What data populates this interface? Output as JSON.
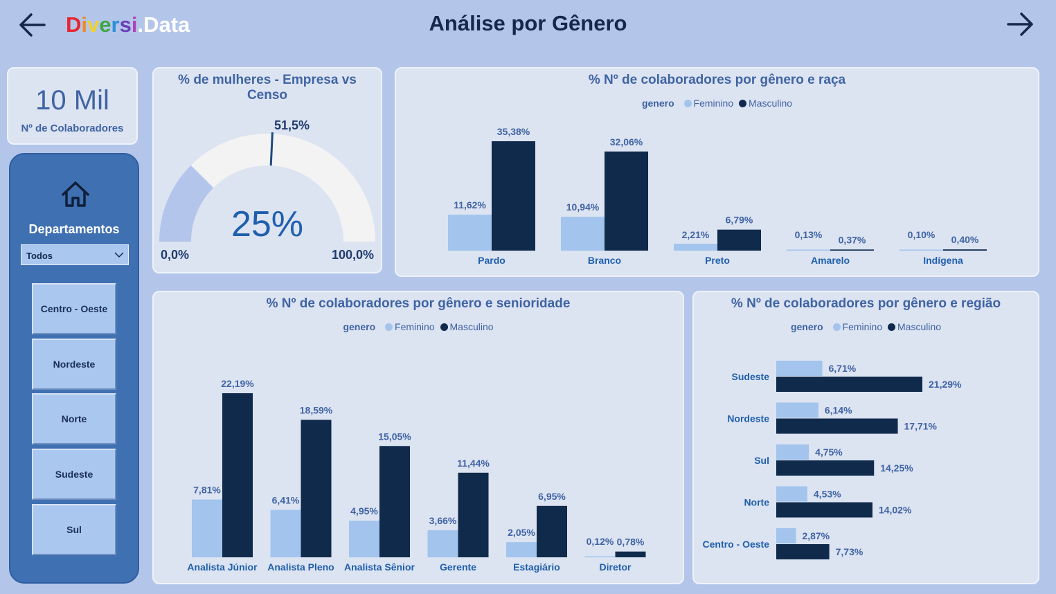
{
  "header": {
    "logo_letters": [
      {
        "ch": "D",
        "color": "#e8262f"
      },
      {
        "ch": "i",
        "color": "#f08a24"
      },
      {
        "ch": "v",
        "color": "#f1d22a"
      },
      {
        "ch": "e",
        "color": "#3fa645"
      },
      {
        "ch": "r",
        "color": "#2f8fd8"
      },
      {
        "ch": "s",
        "color": "#6b3fb8"
      },
      {
        "ch": "i",
        "color": "#b23fb8"
      },
      {
        "ch": ".",
        "color": "#ffffff"
      },
      {
        "ch": "Data",
        "color": "#ffffff"
      }
    ],
    "title": "Análise por Gênero",
    "back_icon": "arrow-left-icon",
    "forward_icon": "arrow-right-icon"
  },
  "kpi": {
    "value": "10 Mil",
    "label": "Nº de Colaboradores"
  },
  "sidebar": {
    "home_icon": "home-icon",
    "title": "Departamentos",
    "dropdown_value": "Todos",
    "regions": [
      "Centro - Oeste",
      "Nordeste",
      "Norte",
      "Sudeste",
      "Sul"
    ]
  },
  "colors": {
    "feminino": "#a2c4ed",
    "masculino": "#102a4c",
    "gauge_fill": "#b4c5ec",
    "gauge_track": "#f3f3f3"
  },
  "legend": {
    "field": "genero",
    "feminino": "Feminino",
    "masculino": "Masculino"
  },
  "gauge": {
    "title": "% de mulheres - Empresa vs Censo",
    "value": 25,
    "value_label": "25%",
    "target": 51.5,
    "target_label": "51,5%",
    "min_label": "0,0%",
    "max_label": "100,0%",
    "min": 0,
    "max": 100
  },
  "chart_data": [
    {
      "type": "bar",
      "title": "% Nº de colaboradores por gênero e raça",
      "categories": [
        "Pardo",
        "Branco",
        "Preto",
        "Amarelo",
        "Indígena"
      ],
      "series": [
        {
          "name": "Feminino",
          "values": [
            11.62,
            10.94,
            2.21,
            0.13,
            0.1
          ],
          "labels": [
            "11,62%",
            "10,94%",
            "2,21%",
            "0,13%",
            "0,10%"
          ]
        },
        {
          "name": "Masculino",
          "values": [
            35.38,
            32.06,
            6.79,
            0.37,
            0.4
          ],
          "labels": [
            "35,38%",
            "32,06%",
            "6,79%",
            "0,37%",
            "0,40%"
          ]
        }
      ],
      "legend_title": "genero",
      "legend_position": "top-center"
    },
    {
      "type": "bar",
      "title": "% Nº de colaboradores por gênero e senioridade",
      "categories": [
        "Analista Júnior",
        "Analista Pleno",
        "Analista Sênior",
        "Gerente",
        "Estagiário",
        "Diretor"
      ],
      "series": [
        {
          "name": "Feminino",
          "values": [
            7.81,
            6.41,
            4.95,
            3.66,
            2.05,
            0.12
          ],
          "labels": [
            "7,81%",
            "6,41%",
            "4,95%",
            "3,66%",
            "2,05%",
            "0,12%"
          ]
        },
        {
          "name": "Masculino",
          "values": [
            22.19,
            18.59,
            15.05,
            11.44,
            6.95,
            0.78
          ],
          "labels": [
            "22,19%",
            "18,59%",
            "15,05%",
            "11,44%",
            "6,95%",
            "0,78%"
          ]
        }
      ],
      "legend_title": "genero",
      "legend_position": "top-center"
    },
    {
      "type": "bar",
      "orientation": "horizontal",
      "title": "% Nº de colaboradores por gênero e região",
      "categories": [
        "Sudeste",
        "Nordeste",
        "Sul",
        "Norte",
        "Centro - Oeste"
      ],
      "series": [
        {
          "name": "Feminino",
          "values": [
            6.71,
            6.14,
            4.75,
            4.53,
            2.87
          ],
          "labels": [
            "6,71%",
            "6,14%",
            "4,75%",
            "4,53%",
            "2,87%"
          ]
        },
        {
          "name": "Masculino",
          "values": [
            21.29,
            17.71,
            14.25,
            14.02,
            7.73
          ],
          "labels": [
            "21,29%",
            "17,71%",
            "14,25%",
            "14,02%",
            "7,73%"
          ]
        }
      ],
      "legend_title": "genero",
      "legend_position": "top-center"
    }
  ]
}
